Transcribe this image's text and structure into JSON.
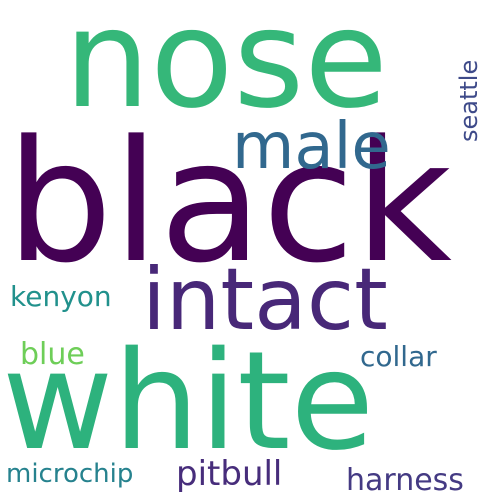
{
  "words": {
    "nose": {
      "text": "nose",
      "color": "#35b779"
    },
    "black": {
      "text": "black",
      "color": "#440154"
    },
    "male": {
      "text": "male",
      "color": "#31688e"
    },
    "seattle": {
      "text": "seattle",
      "color": "#3e4a89"
    },
    "intact": {
      "text": "intact",
      "color": "#482878"
    },
    "kenyon": {
      "text": "kenyon",
      "color": "#21918c"
    },
    "blue": {
      "text": "blue",
      "color": "#6ece58"
    },
    "collar": {
      "text": "collar",
      "color": "#31688e"
    },
    "white": {
      "text": "white",
      "color": "#2db27d"
    },
    "microchip": {
      "text": "microchip",
      "color": "#26828e"
    },
    "pitbull": {
      "text": "pitbull",
      "color": "#472d7b"
    },
    "harness": {
      "text": "harness",
      "color": "#443a83"
    }
  }
}
